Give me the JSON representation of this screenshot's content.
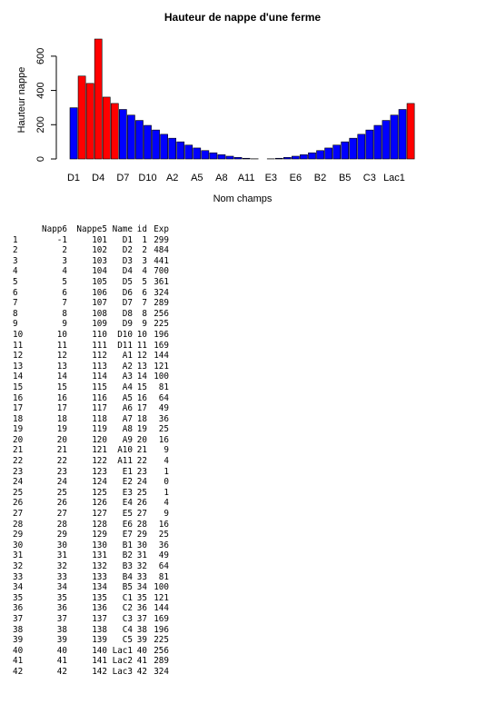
{
  "chart_data": {
    "type": "bar",
    "title": "Hauteur de nappe d'une ferme",
    "xlabel": "Nom champs",
    "ylabel": "Hauteur nappe",
    "ylim": [
      0,
      700
    ],
    "yticks": [
      0,
      200,
      400,
      600
    ],
    "xtick_labels": [
      "D1",
      "D4",
      "D7",
      "D10",
      "A2",
      "A5",
      "A8",
      "A11",
      "E3",
      "E6",
      "B2",
      "B5",
      "C3",
      "Lac1"
    ],
    "categories": [
      "D1",
      "D2",
      "D3",
      "D4",
      "D5",
      "D6",
      "D7",
      "D8",
      "D9",
      "D10",
      "D11",
      "A1",
      "A2",
      "A3",
      "A4",
      "A5",
      "A6",
      "A7",
      "A8",
      "A9",
      "A10",
      "A11",
      "E1",
      "E2",
      "E3",
      "E4",
      "E5",
      "E6",
      "E7",
      "B1",
      "B2",
      "B3",
      "B4",
      "B5",
      "C1",
      "C2",
      "C3",
      "C4",
      "C5",
      "Lac1",
      "Lac2",
      "Lac3"
    ],
    "values": [
      299,
      484,
      441,
      700,
      361,
      324,
      289,
      256,
      225,
      196,
      169,
      144,
      121,
      100,
      81,
      64,
      49,
      36,
      25,
      16,
      9,
      4,
      1,
      0,
      1,
      4,
      9,
      16,
      25,
      36,
      49,
      64,
      81,
      100,
      121,
      144,
      169,
      196,
      225,
      256,
      289,
      324
    ],
    "bar_colors": [
      "blue",
      "red",
      "red",
      "red",
      "red",
      "red",
      "blue",
      "blue",
      "blue",
      "blue",
      "blue",
      "blue",
      "blue",
      "blue",
      "blue",
      "blue",
      "blue",
      "blue",
      "blue",
      "blue",
      "blue",
      "blue",
      "blue",
      "blue",
      "blue",
      "blue",
      "blue",
      "blue",
      "blue",
      "blue",
      "blue",
      "blue",
      "blue",
      "blue",
      "blue",
      "blue",
      "blue",
      "blue",
      "blue",
      "blue",
      "blue",
      "red"
    ],
    "colors": {
      "blue": "#0000ff",
      "red": "#ff0000"
    }
  },
  "table": {
    "headers": [
      "",
      "Napp6",
      "Nappe5",
      "Name",
      "id",
      "Exp"
    ],
    "rows": [
      [
        "1",
        "-1",
        "101",
        "D1",
        "1",
        "299"
      ],
      [
        "2",
        "2",
        "102",
        "D2",
        "2",
        "484"
      ],
      [
        "3",
        "3",
        "103",
        "D3",
        "3",
        "441"
      ],
      [
        "4",
        "4",
        "104",
        "D4",
        "4",
        "700"
      ],
      [
        "5",
        "5",
        "105",
        "D5",
        "5",
        "361"
      ],
      [
        "6",
        "6",
        "106",
        "D6",
        "6",
        "324"
      ],
      [
        "7",
        "7",
        "107",
        "D7",
        "7",
        "289"
      ],
      [
        "8",
        "8",
        "108",
        "D8",
        "8",
        "256"
      ],
      [
        "9",
        "9",
        "109",
        "D9",
        "9",
        "225"
      ],
      [
        "10",
        "10",
        "110",
        "D10",
        "10",
        "196"
      ],
      [
        "11",
        "11",
        "111",
        "D11",
        "11",
        "169"
      ],
      [
        "12",
        "12",
        "112",
        "A1",
        "12",
        "144"
      ],
      [
        "13",
        "13",
        "113",
        "A2",
        "13",
        "121"
      ],
      [
        "14",
        "14",
        "114",
        "A3",
        "14",
        "100"
      ],
      [
        "15",
        "15",
        "115",
        "A4",
        "15",
        "81"
      ],
      [
        "16",
        "16",
        "116",
        "A5",
        "16",
        "64"
      ],
      [
        "17",
        "17",
        "117",
        "A6",
        "17",
        "49"
      ],
      [
        "18",
        "18",
        "118",
        "A7",
        "18",
        "36"
      ],
      [
        "19",
        "19",
        "119",
        "A8",
        "19",
        "25"
      ],
      [
        "20",
        "20",
        "120",
        "A9",
        "20",
        "16"
      ],
      [
        "21",
        "21",
        "121",
        "A10",
        "21",
        "9"
      ],
      [
        "22",
        "22",
        "122",
        "A11",
        "22",
        "4"
      ],
      [
        "23",
        "23",
        "123",
        "E1",
        "23",
        "1"
      ],
      [
        "24",
        "24",
        "124",
        "E2",
        "24",
        "0"
      ],
      [
        "25",
        "25",
        "125",
        "E3",
        "25",
        "1"
      ],
      [
        "26",
        "26",
        "126",
        "E4",
        "26",
        "4"
      ],
      [
        "27",
        "27",
        "127",
        "E5",
        "27",
        "9"
      ],
      [
        "28",
        "28",
        "128",
        "E6",
        "28",
        "16"
      ],
      [
        "29",
        "29",
        "129",
        "E7",
        "29",
        "25"
      ],
      [
        "30",
        "30",
        "130",
        "B1",
        "30",
        "36"
      ],
      [
        "31",
        "31",
        "131",
        "B2",
        "31",
        "49"
      ],
      [
        "32",
        "32",
        "132",
        "B3",
        "32",
        "64"
      ],
      [
        "33",
        "33",
        "133",
        "B4",
        "33",
        "81"
      ],
      [
        "34",
        "34",
        "134",
        "B5",
        "34",
        "100"
      ],
      [
        "35",
        "35",
        "135",
        "C1",
        "35",
        "121"
      ],
      [
        "36",
        "36",
        "136",
        "C2",
        "36",
        "144"
      ],
      [
        "37",
        "37",
        "137",
        "C3",
        "37",
        "169"
      ],
      [
        "38",
        "38",
        "138",
        "C4",
        "38",
        "196"
      ],
      [
        "39",
        "39",
        "139",
        "C5",
        "39",
        "225"
      ],
      [
        "40",
        "40",
        "140",
        "Lac1",
        "40",
        "256"
      ],
      [
        "41",
        "41",
        "141",
        "Lac2",
        "41",
        "289"
      ],
      [
        "42",
        "42",
        "142",
        "Lac3",
        "42",
        "324"
      ]
    ]
  }
}
